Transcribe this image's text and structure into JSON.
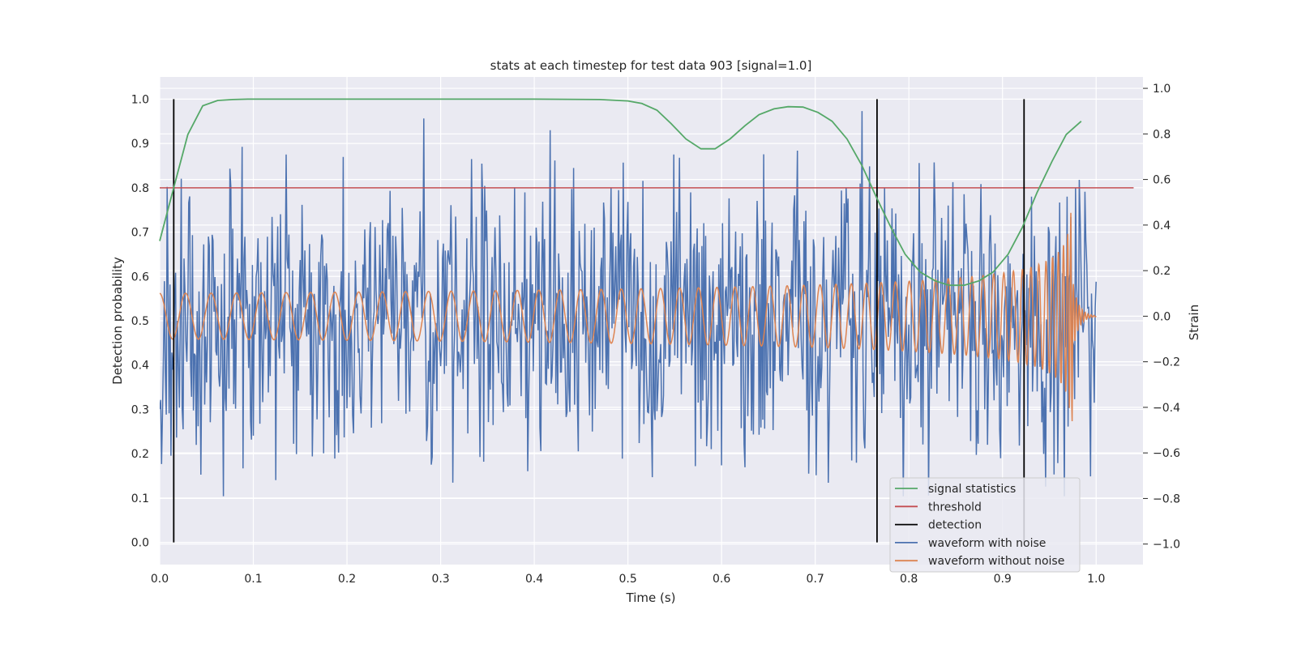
{
  "chart_data": {
    "type": "line",
    "title": "stats at each timestep for test data 903 [signal=1.0]",
    "xlabel": "Time (s)",
    "ylabel": "Detection probability",
    "y2label": "Strain",
    "xlim": [
      0.0,
      1.05
    ],
    "ylim": [
      -0.05,
      1.05
    ],
    "y2lim": [
      -1.09,
      1.05
    ],
    "xticks": [
      "0.0",
      "0.1",
      "0.2",
      "0.3",
      "0.4",
      "0.5",
      "0.6",
      "0.7",
      "0.8",
      "0.9",
      "1.0"
    ],
    "yticks": [
      "0.0",
      "0.1",
      "0.2",
      "0.3",
      "0.4",
      "0.5",
      "0.6",
      "0.7",
      "0.8",
      "0.9",
      "1.0"
    ],
    "y2ticks": [
      "−1.0",
      "−0.8",
      "−0.6",
      "−0.4",
      "−0.2",
      "0.0",
      "0.2",
      "0.4",
      "0.6",
      "0.8",
      "1.0"
    ],
    "grid": true,
    "legend_position": "lower-right",
    "colors": {
      "signal_statistics": "#55a868",
      "threshold": "#c44e52",
      "detection": "#000000",
      "waveform_with_noise": "#4c72b0",
      "waveform_without_noise": "#dd8452",
      "plot_background": "#eaeaf2"
    },
    "series": [
      {
        "name": "signal statistics",
        "axis": "left",
        "x": [
          0.0,
          0.015,
          0.03,
          0.046,
          0.062,
          0.078,
          0.094,
          0.11,
          0.2,
          0.3,
          0.4,
          0.47,
          0.5,
          0.515,
          0.531,
          0.546,
          0.562,
          0.578,
          0.593,
          0.609,
          0.625,
          0.64,
          0.656,
          0.671,
          0.687,
          0.703,
          0.718,
          0.734,
          0.75,
          0.765,
          0.781,
          0.796,
          0.812,
          0.828,
          0.843,
          0.859,
          0.875,
          0.89,
          0.906,
          0.921,
          0.937,
          0.953,
          0.968,
          0.984
        ],
        "y": [
          0.68,
          0.8,
          0.92,
          0.985,
          0.997,
          0.999,
          1.0,
          1.0,
          1.0,
          1.0,
          1.0,
          0.999,
          0.996,
          0.99,
          0.975,
          0.945,
          0.91,
          0.888,
          0.888,
          0.91,
          0.94,
          0.965,
          0.978,
          0.983,
          0.982,
          0.97,
          0.95,
          0.91,
          0.85,
          0.78,
          0.71,
          0.65,
          0.61,
          0.59,
          0.58,
          0.58,
          0.59,
          0.61,
          0.65,
          0.71,
          0.79,
          0.86,
          0.92,
          0.95
        ]
      },
      {
        "name": "threshold",
        "axis": "left",
        "x": [
          0.0,
          1.04
        ],
        "y": [
          0.8,
          0.8
        ]
      },
      {
        "name": "detection",
        "axis": "left",
        "x": [
          0.015,
          0.766,
          0.923
        ],
        "y_range": [
          0.0,
          1.0
        ]
      },
      {
        "name": "waveform with noise",
        "axis": "right",
        "x_range": [
          0.0,
          1.0
        ],
        "min": -0.79,
        "max": 0.95
      },
      {
        "name": "waveform without noise",
        "axis": "right",
        "x_range": [
          0.0,
          1.0
        ],
        "peak": 0.49
      }
    ],
    "legend": [
      "signal statistics",
      "threshold",
      "detection",
      "waveform with noise",
      "waveform without noise"
    ]
  }
}
